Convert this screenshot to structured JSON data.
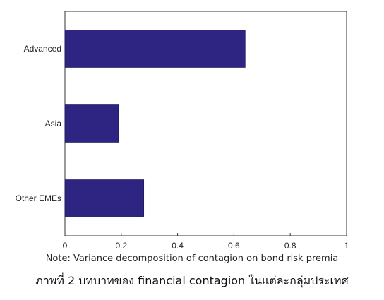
{
  "chart_data": {
    "type": "bar",
    "orientation": "horizontal",
    "categories": [
      "Advanced",
      "Asia",
      "Other EMEs"
    ],
    "values": [
      0.64,
      0.19,
      0.28
    ],
    "xlim": [
      0,
      1
    ],
    "xticks": [
      "0",
      "0.2",
      "0.4",
      "0.6",
      "0.8",
      "1"
    ],
    "bar_color": "#2e2583",
    "grid": false,
    "legend": "none"
  },
  "note": "Note: Variance decomposition of contagion on bond risk premia",
  "caption": "ภาพที่ 2 บทบาทของ financial contagion ในแต่ละกลุ่มประเทศ"
}
